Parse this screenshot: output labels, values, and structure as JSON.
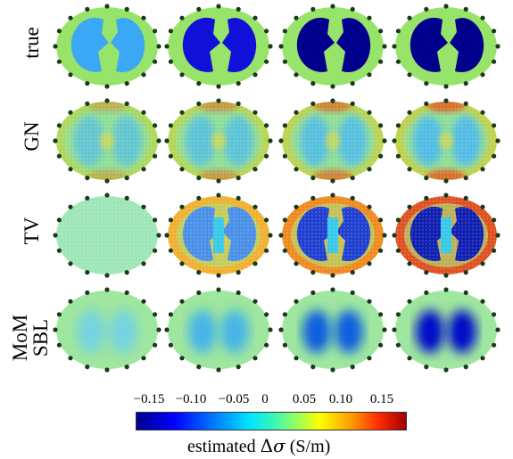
{
  "rows": [
    {
      "key": "true",
      "label": "true"
    },
    {
      "key": "gn",
      "label": "GN"
    },
    {
      "key": "tv",
      "label": "TV"
    },
    {
      "key": "mom",
      "label_line1": "MoM",
      "label_line2": "SBL"
    }
  ],
  "colorbar": {
    "ticks": [
      "−0.15",
      "−0.10",
      "−0.05",
      "0",
      "0.05",
      "0.10",
      "0.15"
    ],
    "title_prefix": "estimated ",
    "title_delta": "Δ",
    "title_sigma": "σ",
    "title_unit": " (S/m)"
  },
  "colors": {
    "background": "#98e36a",
    "electrode": "#1a3a1a",
    "deep_blue": "#00008c",
    "light_blue": "#39b8f0"
  }
}
